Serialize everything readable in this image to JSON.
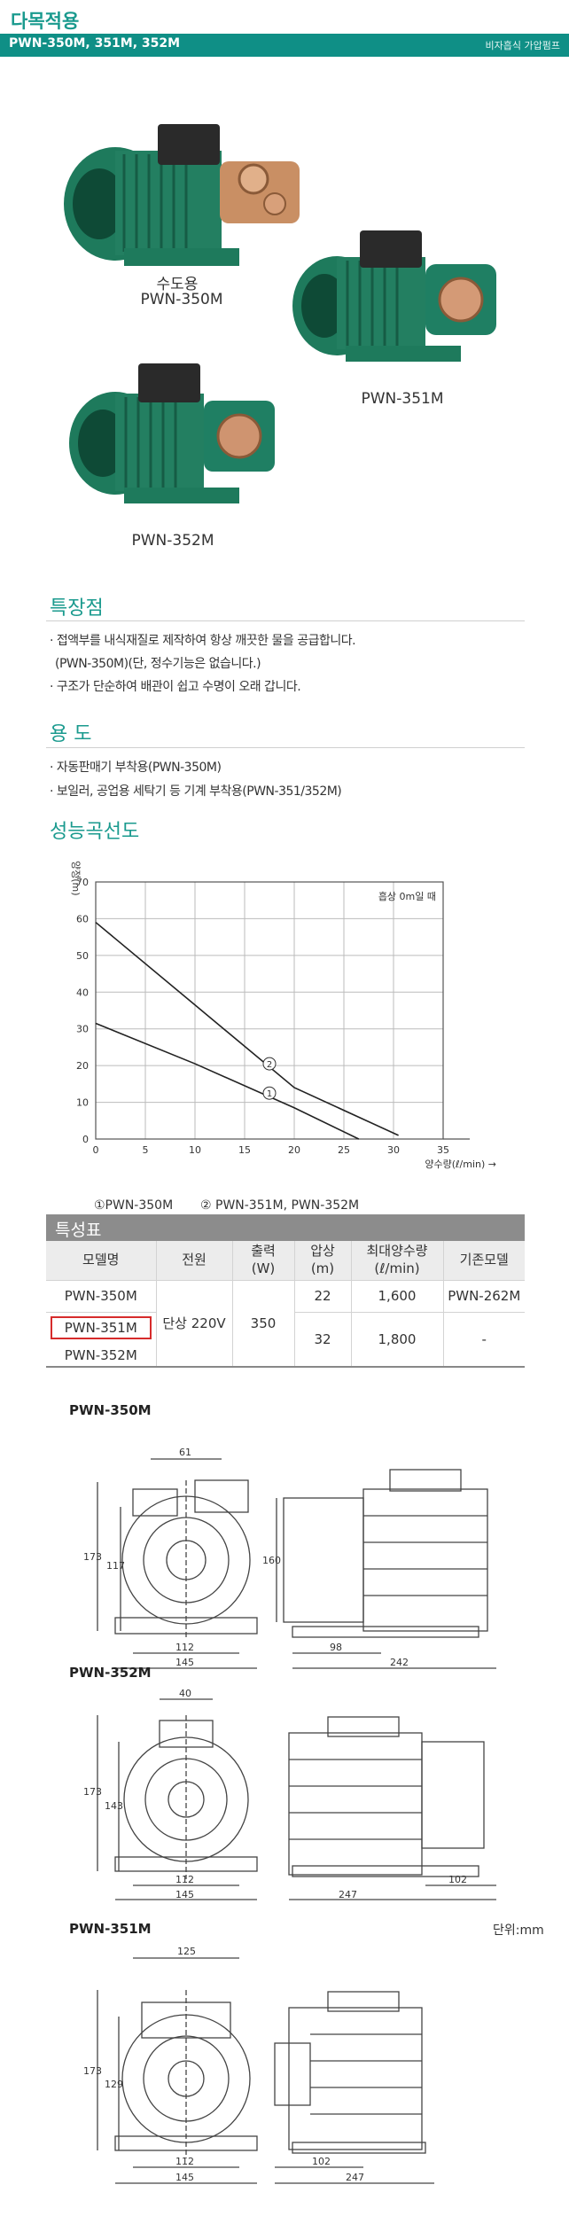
{
  "header": {
    "title": "다목적용",
    "models": "PWN-350M, 351M, 352M",
    "category": "비자흡식 가압펌프"
  },
  "products": {
    "p350": {
      "usage": "수도용",
      "model": "PWN-350M"
    },
    "p351": {
      "model": "PWN-351M"
    },
    "p352": {
      "model": "PWN-352M"
    }
  },
  "features": {
    "title": "특장점",
    "items": [
      "· 접액부를 내식재질로 제작하여 항상 깨끗한 물을 공급합니다.",
      "(PWN-350M)(단, 정수기능은 없습니다.)",
      "· 구조가 단순하여 배관이 쉽고 수명이 오래 갑니다."
    ]
  },
  "usage": {
    "title": "용 도",
    "items": [
      "· 자동판매기 부착용(PWN-350M)",
      "· 보일러, 공업용 세탁기 등 기계 부착용(PWN-351/352M)"
    ]
  },
  "chart_section": {
    "title": "성능곡선도"
  },
  "chart_data": {
    "type": "line",
    "title": "",
    "ylabel": "양정(m)",
    "xlabel": "양수량(ℓ/min)",
    "annotation": "흡상 0m일 때",
    "xlim": [
      0,
      35
    ],
    "ylim": [
      0,
      70
    ],
    "xticks": [
      "0",
      "5",
      "10",
      "15",
      "20",
      "25",
      "30",
      "35"
    ],
    "yticks": [
      "0",
      "10",
      "20",
      "30",
      "40",
      "50",
      "60",
      "70"
    ],
    "grid": true,
    "series": [
      {
        "name": "PWN-350M",
        "marker": "1",
        "x": [
          0,
          10,
          20,
          26.5
        ],
        "y": [
          31.5,
          20.5,
          8.5,
          0
        ]
      },
      {
        "name": "PWN-351M, PWN-352M",
        "marker": "2",
        "x": [
          0,
          10,
          20,
          30.5
        ],
        "y": [
          59,
          36.5,
          14,
          1
        ]
      }
    ],
    "legend": [
      "①PWN-350M",
      "② PWN-351M, PWN-352M"
    ]
  },
  "spec_table": {
    "title": "특성표",
    "headers": [
      "모델명",
      "전원",
      "출력\n(W)",
      "압상\n(m)",
      "최대양수량\n(ℓ/min)",
      "기존모델"
    ],
    "rows": [
      {
        "model": "PWN-350M",
        "head": "22",
        "flow": "1,600",
        "old": "PWN-262M"
      },
      {
        "model": "PWN-351M",
        "head": "32",
        "flow": "1,800",
        "old": "-"
      },
      {
        "model": "PWN-352M"
      }
    ],
    "power": "단상 220V",
    "output": "350",
    "selected": "PWN-351M"
  },
  "drawings": {
    "d350": {
      "label": "PWN-350M",
      "dims": [
        "61",
        "173",
        "117",
        "112",
        "145",
        "160",
        "98",
        "242"
      ]
    },
    "d352": {
      "label": "PWN-352M",
      "dims": [
        "40",
        "173",
        "143",
        "112",
        "145",
        "247",
        "102"
      ]
    },
    "d351": {
      "label": "PWN-351M",
      "dims": [
        "125",
        "173",
        "129",
        "112",
        "145",
        "102",
        "247"
      ]
    },
    "unit": "단위:mm"
  },
  "colors": {
    "teal": "#0f8f86",
    "pump_green": "#1e7a5c",
    "highlight": "#d62b2b"
  }
}
